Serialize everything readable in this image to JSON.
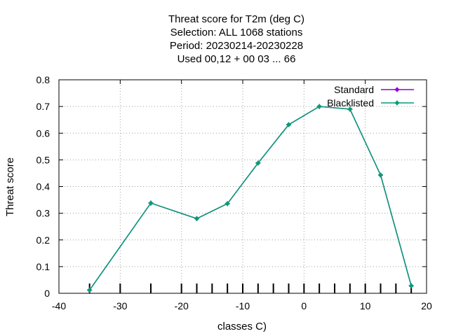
{
  "chart_data": {
    "type": "line",
    "title_lines": [
      "Threat score  for T2m (deg C)",
      "Selection: ALL   1068 stations",
      "Period: 20230214-20230228",
      "Used  00,12  + 00 03 ... 66"
    ],
    "xlabel": "classes C)",
    "ylabel": "Threat score",
    "xlim": [
      -40,
      20
    ],
    "ylim": [
      0,
      0.8
    ],
    "x_ticks": [
      -40,
      -30,
      -20,
      -10,
      0,
      10,
      20
    ],
    "y_ticks": [
      0,
      0.1,
      0.2,
      0.3,
      0.4,
      0.5,
      0.6,
      0.7,
      0.8
    ],
    "x_tick_labels": [
      "-40",
      "-30",
      "-20",
      "-10",
      "0",
      "10",
      "20"
    ],
    "y_tick_labels": [
      "0",
      "0.1",
      "0.2",
      "0.3",
      "0.4",
      "0.5",
      "0.6",
      "0.7",
      "0.8"
    ],
    "grid": true,
    "legend_position": "top-right",
    "class_marks": [
      -35,
      -30,
      -25,
      -20,
      -17.5,
      -15,
      -12.5,
      -10,
      -7.5,
      -5,
      -2.5,
      0,
      2.5,
      5,
      7.5,
      10,
      12.5,
      15,
      17.5
    ],
    "x": [
      -35,
      -25,
      -17.5,
      -12.5,
      -7.5,
      -2.5,
      2.5,
      7.5,
      12.5,
      17.5
    ],
    "series": [
      {
        "name": "Standard",
        "color": "#9400d3",
        "values": [
          0.012,
          0.338,
          0.28,
          0.336,
          0.488,
          0.632,
          0.7,
          0.69,
          0.443,
          0.028
        ]
      },
      {
        "name": "Blacklisted",
        "color": "#009e73",
        "values": [
          0.012,
          0.338,
          0.28,
          0.336,
          0.488,
          0.632,
          0.7,
          0.69,
          0.443,
          0.028
        ]
      }
    ]
  }
}
